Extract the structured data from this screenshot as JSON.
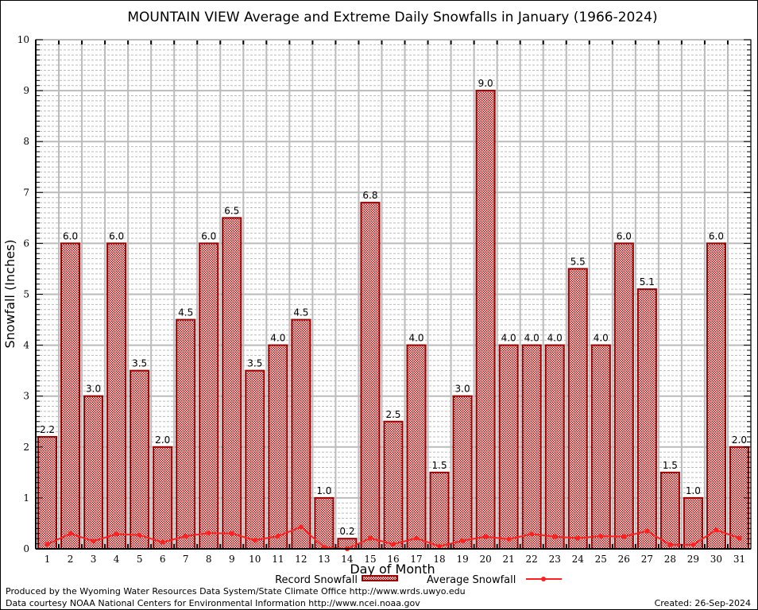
{
  "chart_data": {
    "type": "bar",
    "title": "MOUNTAIN VIEW Average and Extreme Daily Snowfalls in January (1966-2024)",
    "xlabel": "Day of Month",
    "ylabel": "Snowfall (Inches)",
    "ylim": [
      0,
      10
    ],
    "yticks": [
      "0",
      "1",
      "2",
      "3",
      "4",
      "5",
      "6",
      "7",
      "8",
      "9",
      "10"
    ],
    "categories": [
      "1",
      "2",
      "3",
      "4",
      "5",
      "6",
      "7",
      "8",
      "9",
      "10",
      "11",
      "12",
      "13",
      "14",
      "15",
      "16",
      "17",
      "18",
      "19",
      "20",
      "21",
      "22",
      "23",
      "24",
      "25",
      "26",
      "27",
      "28",
      "29",
      "30",
      "31"
    ],
    "grid": true,
    "legend_position": "bottom",
    "series": [
      {
        "name": "Record Snowfall",
        "type": "bar",
        "values": [
          2.2,
          6.0,
          3.0,
          6.0,
          3.5,
          2.0,
          4.5,
          6.0,
          6.5,
          3.5,
          4.0,
          4.5,
          1.0,
          0.2,
          6.8,
          2.5,
          4.0,
          1.5,
          3.0,
          9.0,
          4.0,
          4.0,
          4.0,
          5.5,
          4.0,
          6.0,
          5.1,
          1.5,
          1.0,
          6.0,
          2.0
        ],
        "labels": [
          "2.2",
          "6.0",
          "3.0",
          "6.0",
          "3.5",
          "2.0",
          "4.5",
          "6.0",
          "6.5",
          "3.5",
          "4.0",
          "4.5",
          "1.0",
          "0.2",
          "6.8",
          "2.5",
          "4.0",
          "1.5",
          "3.0",
          "9.0",
          "4.0",
          "4.0",
          "4.0",
          "5.5",
          "4.0",
          "6.0",
          "5.1",
          "1.5",
          "1.0",
          "6.0",
          "2.0"
        ]
      },
      {
        "name": "Average Snowfall",
        "type": "line",
        "values": [
          0.09,
          0.3,
          0.15,
          0.29,
          0.27,
          0.13,
          0.25,
          0.31,
          0.3,
          0.17,
          0.25,
          0.43,
          0.03,
          0.0,
          0.21,
          0.09,
          0.21,
          0.05,
          0.16,
          0.24,
          0.19,
          0.29,
          0.24,
          0.21,
          0.25,
          0.24,
          0.35,
          0.08,
          0.08,
          0.37,
          0.21
        ]
      }
    ],
    "colors": {
      "bar_border": "#990000",
      "bar_fill": "#bb0000",
      "line": "#ff2020"
    }
  },
  "footer": {
    "line1": "Produced by the Wyoming Water Resources Data System/State Climate Office http://www.wrds.uwyo.edu",
    "line2": "Data courtesy NOAA National Centers for Environmental Information http://www.ncei.noaa.gov",
    "created": "Created: 26-Sep-2024"
  }
}
